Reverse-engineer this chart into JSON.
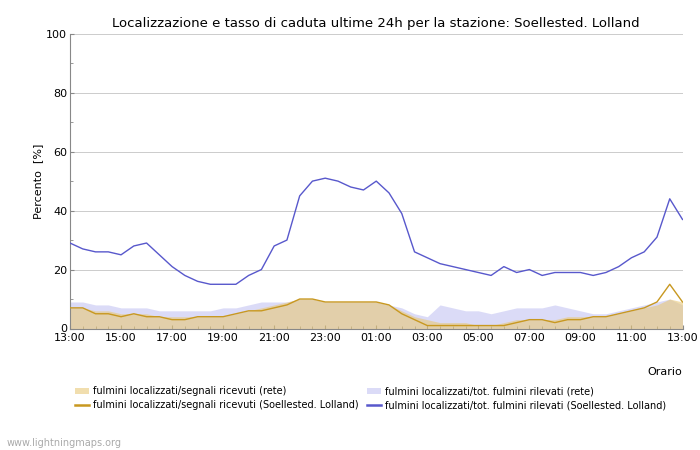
{
  "title": "Localizzazione e tasso di caduta ultime 24h per la stazione: Soellested. Lolland",
  "ylabel": "Percento  [%]",
  "xlabel": "Orario",
  "ylim": [
    0,
    100
  ],
  "yticks": [
    0,
    20,
    40,
    60,
    80,
    100
  ],
  "xtick_labels": [
    "13:00",
    "15:00",
    "17:00",
    "19:00",
    "21:00",
    "23:00",
    "01:00",
    "03:00",
    "05:00",
    "07:00",
    "09:00",
    "11:00",
    "13:00"
  ],
  "background_color": "#ffffff",
  "plot_bg_color": "#ffffff",
  "grid_color": "#cccccc",
  "watermark": "www.lightningmaps.org",
  "fill_rete_signal_color": "#e8c878",
  "fill_rete_total_color": "#b8b8f0",
  "fill_rete_signal_alpha": 0.6,
  "fill_rete_total_alpha": 0.5,
  "line_station_signal_color": "#c89820",
  "line_station_total_color": "#5858cc",
  "line_width": 1.0,
  "legend_labels": [
    "fulmini localizzati/segnali ricevuti (rete)",
    "fulmini localizzati/segnali ricevuti (Soellested. Lolland)",
    "fulmini localizzati/tot. fulmini rilevati (rete)",
    "fulmini localizzati/tot. fulmini rilevati (Soellested. Lolland)"
  ],
  "x_indices": [
    0,
    1,
    2,
    3,
    4,
    5,
    6,
    7,
    8,
    9,
    10,
    11,
    12,
    13,
    14,
    15,
    16,
    17,
    18,
    19,
    20,
    21,
    22,
    23,
    24,
    25,
    26,
    27,
    28,
    29,
    30,
    31,
    32,
    33,
    34,
    35,
    36,
    37,
    38,
    39,
    40,
    41,
    42,
    43,
    44,
    45,
    46,
    47,
    48
  ],
  "rete_signal": [
    7,
    7,
    6,
    6,
    5,
    5,
    5,
    4,
    4,
    4,
    4,
    4,
    4,
    5,
    6,
    7,
    8,
    9,
    10,
    10,
    9,
    9,
    9,
    9,
    9,
    8,
    6,
    4,
    3,
    2,
    2,
    2,
    1,
    1,
    2,
    3,
    3,
    3,
    3,
    4,
    4,
    4,
    4,
    5,
    6,
    7,
    8,
    10,
    9
  ],
  "rete_total": [
    9,
    9,
    8,
    8,
    7,
    7,
    7,
    6,
    6,
    6,
    6,
    6,
    7,
    7,
    8,
    9,
    9,
    9,
    10,
    10,
    9,
    9,
    9,
    9,
    9,
    8,
    7,
    5,
    4,
    8,
    7,
    6,
    6,
    5,
    6,
    7,
    7,
    7,
    8,
    7,
    6,
    5,
    5,
    6,
    7,
    8,
    9,
    10,
    8
  ],
  "station_signal": [
    7,
    7,
    5,
    5,
    4,
    5,
    4,
    4,
    3,
    3,
    4,
    4,
    4,
    5,
    6,
    6,
    7,
    8,
    10,
    10,
    9,
    9,
    9,
    9,
    9,
    8,
    5,
    3,
    1,
    1,
    1,
    1,
    1,
    1,
    1,
    2,
    3,
    3,
    2,
    3,
    3,
    4,
    4,
    5,
    6,
    7,
    9,
    15,
    9
  ],
  "station_total": [
    29,
    27,
    26,
    26,
    25,
    28,
    29,
    25,
    21,
    18,
    16,
    15,
    15,
    15,
    18,
    20,
    28,
    30,
    45,
    50,
    51,
    50,
    48,
    47,
    50,
    46,
    39,
    26,
    24,
    22,
    21,
    20,
    19,
    18,
    21,
    19,
    20,
    18,
    19,
    19,
    19,
    18,
    19,
    21,
    24,
    26,
    31,
    44,
    37
  ]
}
